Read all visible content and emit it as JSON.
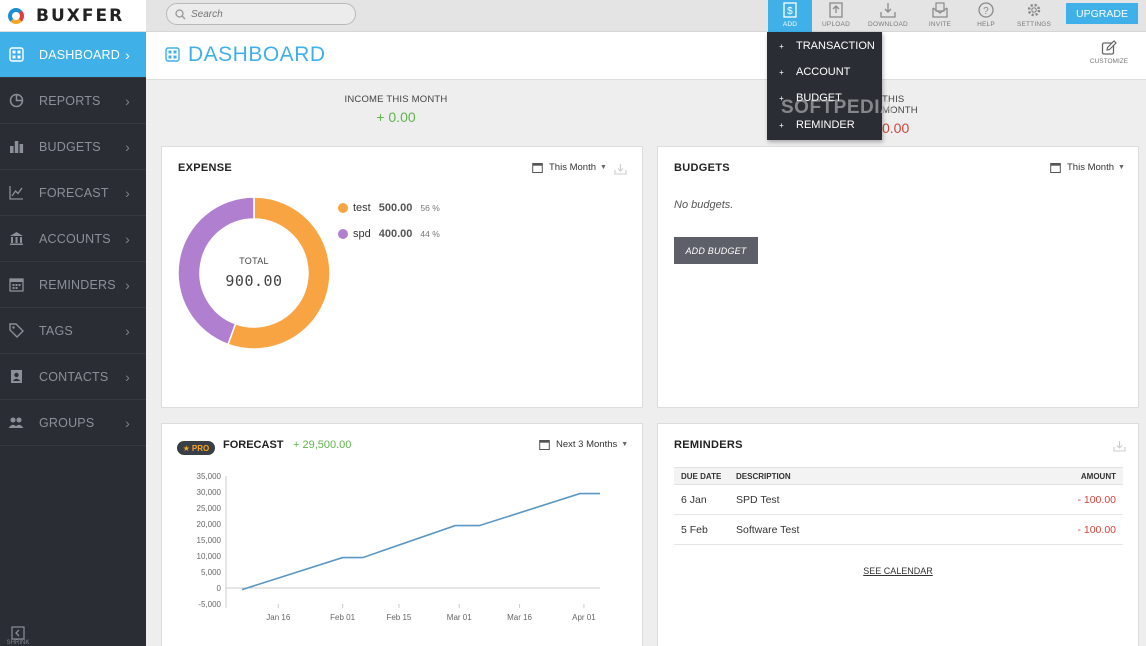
{
  "app": {
    "brand": "BUXFER"
  },
  "colors": {
    "accent": "#3fb1e8",
    "sidebar": "#2a2e34",
    "positive": "#5fb44b",
    "negative": "#d0453b",
    "orange": "#f8a443",
    "purple": "#b07fcf"
  },
  "sidebar": {
    "items": [
      {
        "label": "DASHBOARD",
        "icon": "dashboard-icon"
      },
      {
        "label": "REPORTS",
        "icon": "pie-chart-icon"
      },
      {
        "label": "BUDGETS",
        "icon": "bar-chart-icon"
      },
      {
        "label": "FORECAST",
        "icon": "line-chart-icon"
      },
      {
        "label": "ACCOUNTS",
        "icon": "bank-icon"
      },
      {
        "label": "REMINDERS",
        "icon": "calendar-icon"
      },
      {
        "label": "TAGS",
        "icon": "tag-icon"
      },
      {
        "label": "CONTACTS",
        "icon": "contact-card-icon"
      },
      {
        "label": "GROUPS",
        "icon": "group-icon"
      }
    ],
    "shrink_label": "SHRINK"
  },
  "topbar": {
    "search_placeholder": "Search",
    "tools": {
      "add": "ADD",
      "upload": "UPLOAD",
      "download": "DOWNLOAD",
      "invite": "INVITE",
      "help": "HELP",
      "settings": "SETTINGS"
    },
    "upgrade_label": "UPGRADE"
  },
  "add_menu": {
    "items": [
      "TRANSACTION",
      "ACCOUNT",
      "BUDGET",
      "REMINDER"
    ]
  },
  "watermark": "SOFTPEDIA",
  "header": {
    "title": "DASHBOARD",
    "customize_label": "CUSTOMIZE"
  },
  "income": {
    "label": "INCOME THIS MONTH",
    "value": "+ 0.00"
  },
  "expense_summary": {
    "label_visible": "THIS MONTH",
    "value_visible": "0.00"
  },
  "expense": {
    "title": "EXPENSE",
    "period": "This Month",
    "total_label": "TOTAL",
    "total_value": "900.00",
    "legend": [
      {
        "name": "test",
        "amount": "500.00",
        "percent": "56 %",
        "color": "#f8a443",
        "value": 500
      },
      {
        "name": "spd",
        "amount": "400.00",
        "percent": "44 %",
        "color": "#b07fcf",
        "value": 400
      }
    ]
  },
  "budgets": {
    "title": "BUDGETS",
    "period": "This Month",
    "empty_text": "No budgets.",
    "add_label": "ADD BUDGET"
  },
  "forecast": {
    "pro_label": "PRO",
    "title": "FORECAST",
    "total": "+ 29,500.00",
    "period": "Next 3 Months"
  },
  "chart_data": {
    "type": "line",
    "title": "",
    "xlabel": "",
    "ylabel": "",
    "x_ticks": [
      "Jan 16",
      "Feb 01",
      "Feb 15",
      "Mar 01",
      "Mar 16",
      "Apr 01"
    ],
    "y_ticks": [
      "35,000",
      "30,000",
      "25,000",
      "20,000",
      "15,000",
      "10,000",
      "5,000",
      "0",
      "-5,000"
    ],
    "ylim": [
      -5000,
      35000
    ],
    "xlim": [
      "2016-01-03",
      "2016-04-05"
    ],
    "grid": false,
    "series": [
      {
        "x": [
          "2016-01-07",
          "2016-02-01",
          "2016-02-06",
          "2016-02-29",
          "2016-03-06",
          "2016-03-31",
          "2016-04-05"
        ],
        "y": [
          -500,
          9500,
          9500,
          19500,
          19500,
          29500,
          29500
        ]
      }
    ]
  },
  "reminders": {
    "title": "REMINDERS",
    "columns": [
      "DUE DATE",
      "DESCRIPTION",
      "AMOUNT"
    ],
    "rows": [
      {
        "date": "6 Jan",
        "description": "SPD Test",
        "amount": "- 100.00"
      },
      {
        "date": "5 Feb",
        "description": "Software Test",
        "amount": "- 100.00"
      }
    ],
    "see_calendar": "SEE CALENDAR"
  }
}
